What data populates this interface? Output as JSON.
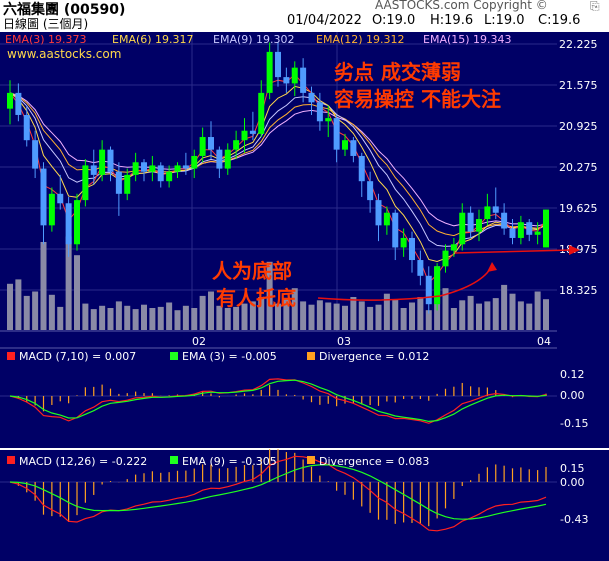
{
  "header": {
    "stock_name": "六福集團 (00590)",
    "chart_type_label": "日線圖 (三個月)",
    "copyright": "AASTOCKS.com Copyright ©",
    "date": "01/04/2022",
    "open": "O:19.0",
    "high": "H:19.6",
    "low": "L:19.0",
    "close": "C:19.6"
  },
  "watermark": "www.aastocks.com",
  "ema_legend": [
    {
      "label": "EMA(3) 19.373",
      "color": "#ff3b3b"
    },
    {
      "label": "EMA(6) 19.317",
      "color": "#ffd84a"
    },
    {
      "label": "EMA(9) 19.302",
      "color": "#c8c8ff"
    },
    {
      "label": "EMA(12) 19.312",
      "color": "#ffb030"
    },
    {
      "label": "EMA(15) 19.343",
      "color": "#f0b0ff"
    }
  ],
  "annotations": {
    "top_right_line1": "劣点 成交薄弱",
    "top_right_line2": "容易操控 不能大注",
    "bottom_left_line1": "人为底部",
    "bottom_left_line2": "有人托底"
  },
  "macd1_legend": [
    {
      "label": "MACD (7,10) = 0.007",
      "color": "#ff2020"
    },
    {
      "label": "EMA (3) = -0.005",
      "color": "#20ff20"
    },
    {
      "label": "Divergence = 0.012",
      "color": "#ffa020"
    }
  ],
  "macd2_legend": [
    {
      "label": "MACD (12,26) = -0.222",
      "color": "#ff2020"
    },
    {
      "label": "EMA (9) = -0.305",
      "color": "#20ff20"
    },
    {
      "label": "Divergence = 0.083",
      "color": "#ffa020"
    }
  ],
  "colors": {
    "panel_bg": "#000066",
    "grid": "#2a2a8a",
    "up_candle": "#00ff00",
    "down_candle": "#4f9bff",
    "volume": "#8a8aa6",
    "annotation": "#ff3a00",
    "axis_label": "#ffffff"
  },
  "chart_data": [
    {
      "type": "candlestick",
      "title": "六福集團 (00590) 日線圖 (三個月)",
      "y_ticks": [
        "22.225",
        "21.575",
        "20.925",
        "20.275",
        "19.625",
        "18.975",
        "18.325"
      ],
      "ylim": [
        17.95,
        22.35
      ],
      "x_ticks": [
        "02",
        "03",
        "04"
      ],
      "candles": [
        {
          "o": 21.2,
          "h": 21.65,
          "l": 20.95,
          "c": 21.45
        },
        {
          "o": 21.45,
          "h": 21.6,
          "l": 21.0,
          "c": 21.1
        },
        {
          "o": 21.1,
          "h": 21.25,
          "l": 20.6,
          "c": 20.7
        },
        {
          "o": 20.7,
          "h": 20.85,
          "l": 20.1,
          "c": 20.25
        },
        {
          "o": 20.25,
          "h": 20.35,
          "l": 19.05,
          "c": 19.35
        },
        {
          "o": 19.35,
          "h": 19.95,
          "l": 19.25,
          "c": 19.85
        },
        {
          "o": 19.85,
          "h": 20.15,
          "l": 19.6,
          "c": 19.7
        },
        {
          "o": 19.7,
          "h": 19.8,
          "l": 18.85,
          "c": 19.05
        },
        {
          "o": 19.05,
          "h": 19.85,
          "l": 18.95,
          "c": 19.75
        },
        {
          "o": 19.75,
          "h": 20.4,
          "l": 19.65,
          "c": 20.3
        },
        {
          "o": 20.3,
          "h": 20.55,
          "l": 20.0,
          "c": 20.15
        },
        {
          "o": 20.15,
          "h": 20.7,
          "l": 20.05,
          "c": 20.55
        },
        {
          "o": 20.55,
          "h": 20.6,
          "l": 20.05,
          "c": 20.2
        },
        {
          "o": 20.2,
          "h": 20.35,
          "l": 19.5,
          "c": 19.85
        },
        {
          "o": 19.85,
          "h": 20.25,
          "l": 19.75,
          "c": 20.15
        },
        {
          "o": 20.15,
          "h": 20.5,
          "l": 20.05,
          "c": 20.35
        },
        {
          "o": 20.35,
          "h": 20.4,
          "l": 20.05,
          "c": 20.2
        },
        {
          "o": 20.2,
          "h": 20.45,
          "l": 20.05,
          "c": 20.3
        },
        {
          "o": 20.3,
          "h": 20.35,
          "l": 19.95,
          "c": 20.05
        },
        {
          "o": 20.05,
          "h": 20.3,
          "l": 19.95,
          "c": 20.2
        },
        {
          "o": 20.2,
          "h": 20.35,
          "l": 20.1,
          "c": 20.3
        },
        {
          "o": 20.3,
          "h": 20.5,
          "l": 20.15,
          "c": 20.25
        },
        {
          "o": 20.25,
          "h": 20.55,
          "l": 20.1,
          "c": 20.45
        },
        {
          "o": 20.45,
          "h": 20.9,
          "l": 20.35,
          "c": 20.75
        },
        {
          "o": 20.75,
          "h": 21.0,
          "l": 20.4,
          "c": 20.55
        },
        {
          "o": 20.55,
          "h": 20.6,
          "l": 20.1,
          "c": 20.25
        },
        {
          "o": 20.25,
          "h": 20.65,
          "l": 20.15,
          "c": 20.55
        },
        {
          "o": 20.55,
          "h": 20.85,
          "l": 20.4,
          "c": 20.7
        },
        {
          "o": 20.7,
          "h": 21.05,
          "l": 20.5,
          "c": 20.85
        },
        {
          "o": 20.85,
          "h": 21.15,
          "l": 20.7,
          "c": 20.8
        },
        {
          "o": 20.8,
          "h": 21.65,
          "l": 20.75,
          "c": 21.45
        },
        {
          "o": 21.45,
          "h": 22.25,
          "l": 21.35,
          "c": 22.1
        },
        {
          "o": 22.1,
          "h": 22.25,
          "l": 21.55,
          "c": 21.7
        },
        {
          "o": 21.7,
          "h": 21.85,
          "l": 21.45,
          "c": 21.6
        },
        {
          "o": 21.6,
          "h": 21.95,
          "l": 21.4,
          "c": 21.85
        },
        {
          "o": 21.85,
          "h": 22.0,
          "l": 21.3,
          "c": 21.45
        },
        {
          "o": 21.45,
          "h": 21.55,
          "l": 21.1,
          "c": 21.3
        },
        {
          "o": 21.3,
          "h": 21.45,
          "l": 20.85,
          "c": 21.0
        },
        {
          "o": 21.0,
          "h": 21.25,
          "l": 20.75,
          "c": 21.05
        },
        {
          "o": 21.05,
          "h": 21.1,
          "l": 20.35,
          "c": 20.55
        },
        {
          "o": 20.55,
          "h": 20.8,
          "l": 20.45,
          "c": 20.7
        },
        {
          "o": 20.7,
          "h": 20.75,
          "l": 20.35,
          "c": 20.45
        },
        {
          "o": 20.45,
          "h": 20.5,
          "l": 19.8,
          "c": 20.05
        },
        {
          "o": 20.05,
          "h": 20.2,
          "l": 19.55,
          "c": 19.75
        },
        {
          "o": 19.75,
          "h": 19.85,
          "l": 19.1,
          "c": 19.35
        },
        {
          "o": 19.35,
          "h": 19.65,
          "l": 19.2,
          "c": 19.55
        },
        {
          "o": 19.55,
          "h": 19.6,
          "l": 18.8,
          "c": 19.0
        },
        {
          "o": 19.0,
          "h": 19.3,
          "l": 18.85,
          "c": 19.15
        },
        {
          "o": 19.15,
          "h": 19.25,
          "l": 18.6,
          "c": 18.8
        },
        {
          "o": 18.8,
          "h": 18.95,
          "l": 18.4,
          "c": 18.55
        },
        {
          "o": 18.55,
          "h": 18.7,
          "l": 17.95,
          "c": 18.1
        },
        {
          "o": 18.1,
          "h": 18.75,
          "l": 18.0,
          "c": 18.7
        },
        {
          "o": 18.7,
          "h": 19.05,
          "l": 18.6,
          "c": 18.95
        },
        {
          "o": 18.95,
          "h": 19.15,
          "l": 18.85,
          "c": 19.05
        },
        {
          "o": 19.05,
          "h": 19.7,
          "l": 18.95,
          "c": 19.55
        },
        {
          "o": 19.55,
          "h": 19.65,
          "l": 19.15,
          "c": 19.25
        },
        {
          "o": 19.25,
          "h": 19.6,
          "l": 19.1,
          "c": 19.45
        },
        {
          "o": 19.45,
          "h": 19.85,
          "l": 19.35,
          "c": 19.65
        },
        {
          "o": 19.65,
          "h": 19.95,
          "l": 19.45,
          "c": 19.55
        },
        {
          "o": 19.55,
          "h": 19.7,
          "l": 19.2,
          "c": 19.3
        },
        {
          "o": 19.3,
          "h": 19.45,
          "l": 19.05,
          "c": 19.15
        },
        {
          "o": 19.15,
          "h": 19.5,
          "l": 19.05,
          "c": 19.4
        },
        {
          "o": 19.4,
          "h": 19.45,
          "l": 19.1,
          "c": 19.2
        },
        {
          "o": 19.2,
          "h": 19.4,
          "l": 19.05,
          "c": 19.25
        },
        {
          "o": 19.0,
          "h": 19.6,
          "l": 19.0,
          "c": 19.6
        }
      ],
      "volume": [
        4.2,
        4.6,
        3.1,
        3.5,
        8.0,
        3.2,
        2.1,
        8.5,
        6.8,
        2.4,
        1.9,
        2.2,
        2.0,
        2.6,
        2.2,
        1.9,
        2.3,
        2.0,
        2.1,
        2.5,
        1.8,
        2.2,
        2.0,
        3.1,
        3.5,
        2.2,
        2.0,
        2.1,
        2.4,
        2.6,
        3.0,
        6.2,
        2.4,
        2.8,
        3.8,
        2.6,
        2.3,
        2.7,
        2.5,
        2.4,
        2.2,
        3.0,
        2.6,
        2.1,
        2.3,
        3.3,
        2.8,
        2.0,
        2.5,
        3.0,
        1.8,
        5.8,
        3.8,
        2.0,
        2.7,
        3.1,
        2.4,
        2.6,
        2.9,
        4.1,
        3.3,
        2.6,
        2.4,
        3.5,
        2.8
      ]
    },
    {
      "type": "line",
      "title": "MACD (7,10)",
      "y_ticks": [
        "0.12",
        "0.00",
        "-0.15"
      ],
      "ylim": [
        -0.22,
        0.17
      ]
    },
    {
      "type": "line",
      "title": "MACD (12,26)",
      "y_ticks": [
        "0.15",
        "0.00",
        "-0.43"
      ],
      "ylim": [
        -0.62,
        0.22
      ]
    }
  ]
}
